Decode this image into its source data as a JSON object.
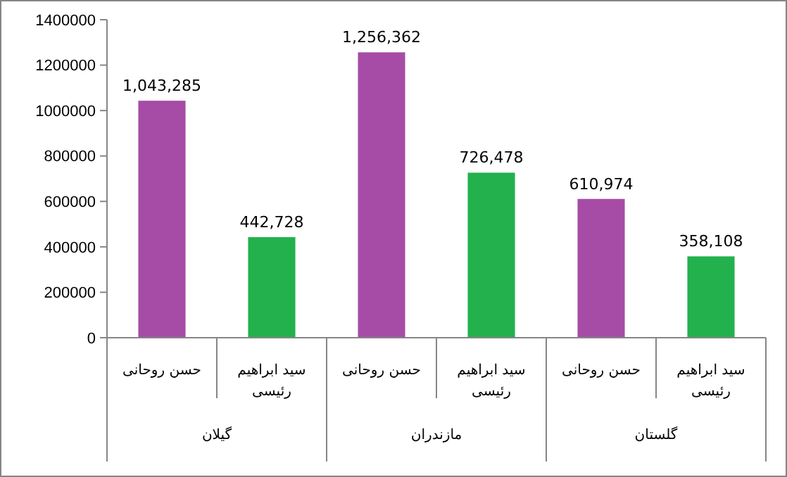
{
  "chart_data": {
    "type": "bar",
    "categories": [
      "حسن روحانی",
      "سید ابراهیم رئیسی",
      "حسن روحانی",
      "سید ابراهیم رئیسی",
      "حسن روحانی",
      "سید ابراهیم رئیسی"
    ],
    "values": [
      1043285,
      442728,
      1256362,
      726478,
      610974,
      358108
    ],
    "colors": [
      "#a64ca6",
      "#22b14c",
      "#a64ca6",
      "#22b14c",
      "#a64ca6",
      "#22b14c"
    ],
    "value_labels": [
      "1,043,285",
      "442,728",
      "1,256,362",
      "726,478",
      "610,974",
      "358,108"
    ],
    "annotations": [
      "گیلان",
      "مازندران",
      "گلستان"
    ],
    "ylim": [
      0,
      1400000
    ],
    "yticks": [
      0,
      200000,
      400000,
      600000,
      800000,
      1000000,
      1200000,
      1400000
    ],
    "grid": false
  }
}
